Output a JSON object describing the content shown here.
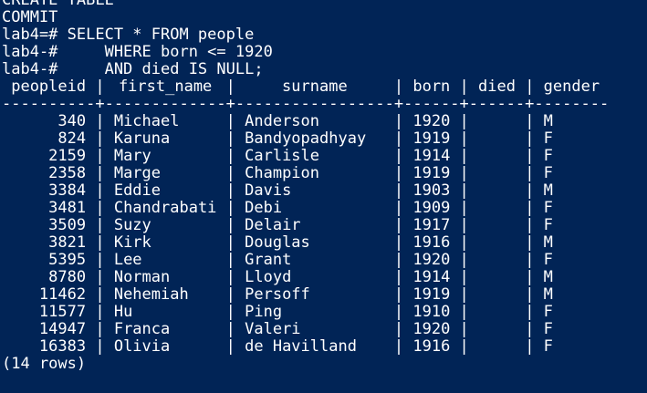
{
  "background_color": "#012456",
  "text_color": "#ffffff",
  "terminal": {
    "lines_before": [
      "CREATE TABLE",
      "COMMIT",
      "lab4=# SELECT * FROM people",
      "lab4-#     WHERE born <= 1920",
      "lab4-#     AND died IS NULL;"
    ],
    "result": {
      "columns": [
        "peopleid",
        "first_name",
        "surname",
        "born",
        "died",
        "gender"
      ],
      "header_separator": "----------+-------------+-----------------+------+------+--------",
      "rows": [
        [
          "340",
          "Michael",
          "Anderson",
          "1920",
          "",
          "M"
        ],
        [
          "824",
          "Karuna",
          "Bandyopadhyay",
          "1919",
          "",
          "F"
        ],
        [
          "2159",
          "Mary",
          "Carlisle",
          "1914",
          "",
          "F"
        ],
        [
          "2358",
          "Marge",
          "Champion",
          "1919",
          "",
          "F"
        ],
        [
          "3384",
          "Eddie",
          "Davis",
          "1903",
          "",
          "M"
        ],
        [
          "3481",
          "Chandrabati",
          "Debi",
          "1909",
          "",
          "F"
        ],
        [
          "3509",
          "Suzy",
          "Delair",
          "1917",
          "",
          "F"
        ],
        [
          "3821",
          "Kirk",
          "Douglas",
          "1916",
          "",
          "M"
        ],
        [
          "5395",
          "Lee",
          "Grant",
          "1920",
          "",
          "F"
        ],
        [
          "8780",
          "Norman",
          "Lloyd",
          "1914",
          "",
          "M"
        ],
        [
          "11462",
          "Nehemiah",
          "Persoff",
          "1919",
          "",
          "M"
        ],
        [
          "11577",
          "Hu",
          "Ping",
          "1910",
          "",
          "F"
        ],
        [
          "14947",
          "Franca",
          "Valeri",
          "1920",
          "",
          "F"
        ],
        [
          "16383",
          "Olivia",
          "de Havilland",
          "1916",
          "",
          "F"
        ]
      ],
      "row_count": "(14 rows)"
    }
  }
}
